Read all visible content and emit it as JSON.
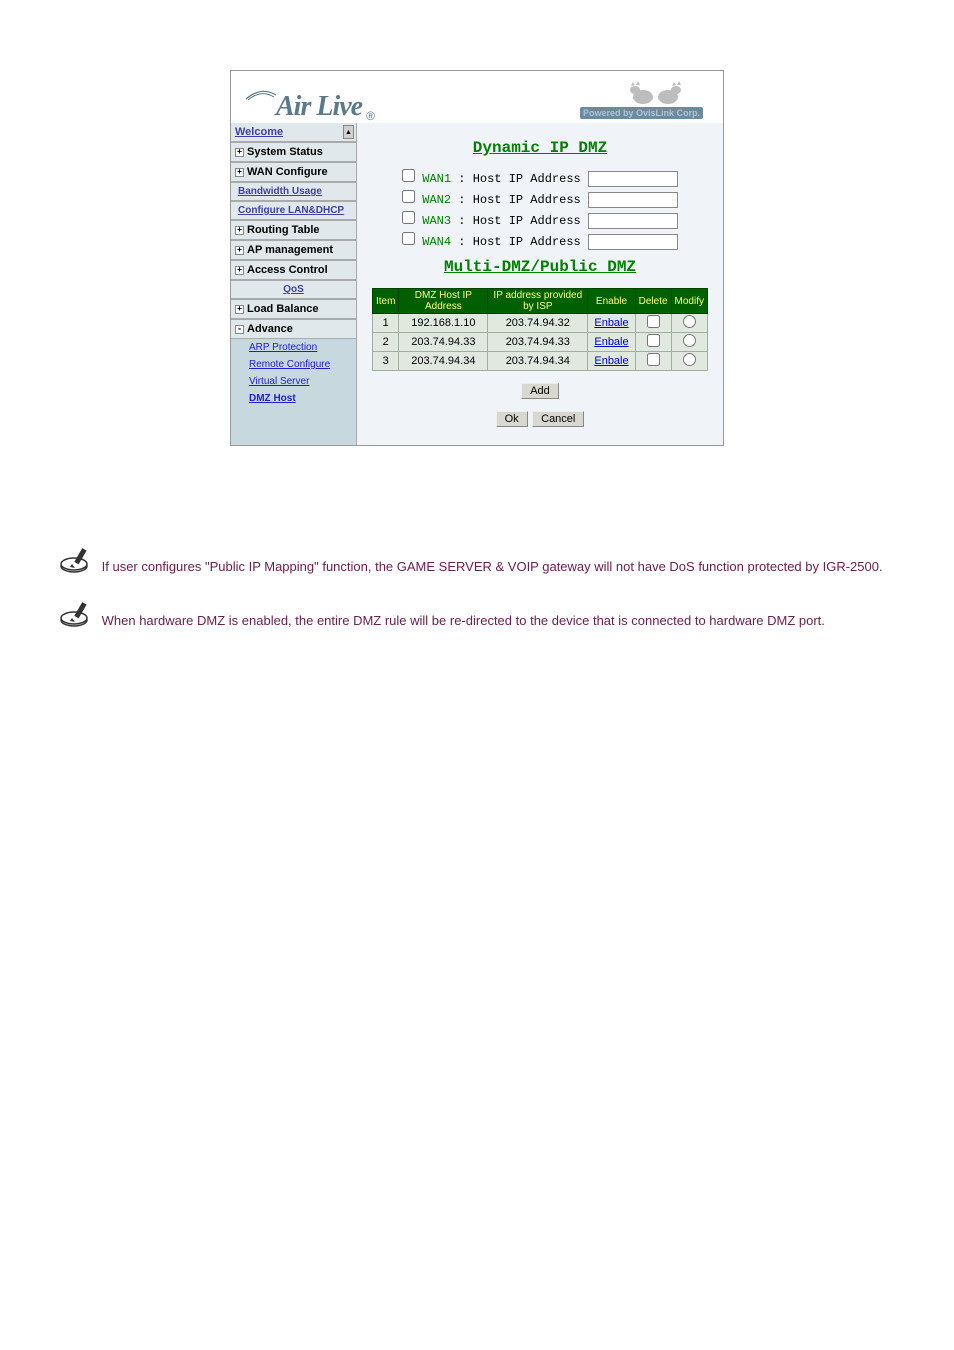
{
  "header": {
    "logo_text": "Air Live",
    "logo_color": "#5a7a8a",
    "powered_text": "Powered by OvisLink Corp."
  },
  "sidebar": {
    "welcome": "Welcome",
    "items": [
      {
        "icon": "+",
        "label": "System Status",
        "style": "heading"
      },
      {
        "icon": "+",
        "label": "WAN Configure",
        "style": "heading"
      },
      {
        "icon": "",
        "label": "Bandwidth Usage",
        "style": "heading-link"
      },
      {
        "icon": "",
        "label": "Configure LAN&DHCP",
        "style": "heading-link"
      },
      {
        "icon": "+",
        "label": "Routing Table",
        "style": "heading"
      },
      {
        "icon": "+",
        "label": "AP management",
        "style": "heading"
      },
      {
        "icon": "+",
        "label": "Access Control",
        "style": "heading"
      },
      {
        "icon": "",
        "label": "QoS",
        "style": "center-link"
      },
      {
        "icon": "+",
        "label": "Load Balance",
        "style": "heading"
      },
      {
        "icon": "-",
        "label": "Advance",
        "style": "heading"
      },
      {
        "icon": "",
        "label": "ARP Protection",
        "style": "sublink"
      },
      {
        "icon": "",
        "label": "Remote Configure",
        "style": "sublink"
      },
      {
        "icon": "",
        "label": "Virtual Server",
        "style": "sublink"
      },
      {
        "icon": "",
        "label": "DMZ Host",
        "style": "sublink-bold"
      }
    ]
  },
  "content": {
    "section1_title": "Dynamic IP DMZ",
    "wan_rows": [
      {
        "label": "WAN1",
        "field_label": ": Host IP Address"
      },
      {
        "label": "WAN2",
        "field_label": ": Host IP Address"
      },
      {
        "label": "WAN3",
        "field_label": ": Host IP Address"
      },
      {
        "label": "WAN4",
        "field_label": ": Host IP Address"
      }
    ],
    "section2_title": "Multi-DMZ/Public DMZ",
    "table": {
      "headers": [
        "Item",
        "DMZ Host IP Address",
        "IP address provided by ISP",
        "Enable",
        "Delete",
        "Modify"
      ],
      "header_bg": "#006000",
      "header_fg": "#ffff80",
      "rows": [
        {
          "item": "1",
          "dmz_ip": "192.168.1.10",
          "isp_ip": "203.74.94.32",
          "enable": "Enbale"
        },
        {
          "item": "2",
          "dmz_ip": "203.74.94.33",
          "isp_ip": "203.74.94.33",
          "enable": "Enbale"
        },
        {
          "item": "3",
          "dmz_ip": "203.74.94.34",
          "isp_ip": "203.74.94.34",
          "enable": "Enbale"
        }
      ]
    },
    "buttons": {
      "add": "Add",
      "ok": "Ok",
      "cancel": "Cancel"
    }
  },
  "notes": {
    "note1": "If user configures \"Public IP Mapping\" function, the GAME SERVER & VOIP gateway will not have DoS function protected by IGR-2500.",
    "note2": "When hardware DMZ is enabled, the entire DMZ rule will be re-directed to the device that is connected to hardware DMZ port.",
    "note_color": "#6a2050"
  }
}
